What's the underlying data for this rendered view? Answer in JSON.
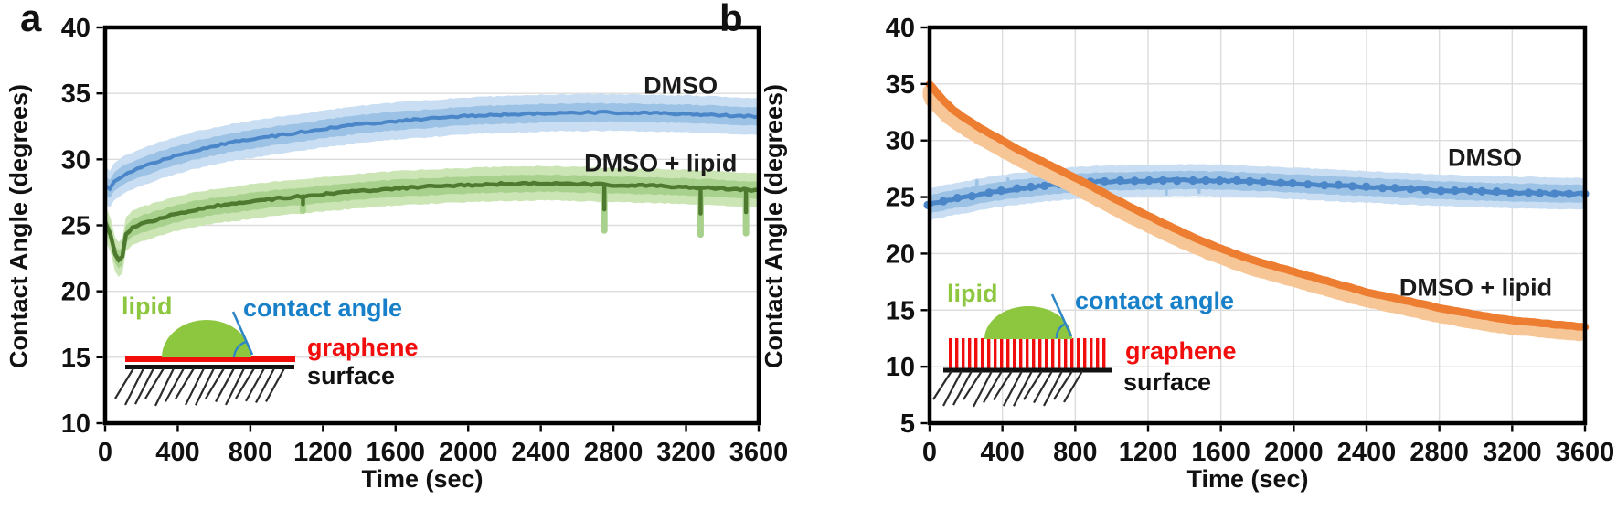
{
  "chart_data": [
    {
      "type": "line",
      "panel_label": "a",
      "xlabel": "Time (sec)",
      "ylabel": "Contact Angle (degrees)",
      "xlim": [
        0,
        3600
      ],
      "ylim": [
        10,
        40
      ],
      "x_ticks": [
        0,
        400,
        800,
        1200,
        1600,
        2000,
        2400,
        2800,
        3200,
        3600
      ],
      "y_ticks": [
        40,
        35,
        30,
        25,
        20,
        15,
        10
      ],
      "grid": {
        "horizontal": true,
        "vertical": false
      },
      "series": [
        {
          "name": "DMSO",
          "color": "#4A86C8",
          "band_inner_color": "#9CC2E5",
          "band_outer_color": "#C9DEF2",
          "band_inner": 0.7,
          "band_outer": 1.4,
          "line_width": 4,
          "label_pos": [
            3170,
            35.6
          ],
          "points": [
            [
              0,
              28.1
            ],
            [
              25,
              27.7
            ],
            [
              50,
              28.3
            ],
            [
              100,
              28.8
            ],
            [
              150,
              29.1
            ],
            [
              200,
              29.4
            ],
            [
              300,
              29.9
            ],
            [
              400,
              30.3
            ],
            [
              500,
              30.7
            ],
            [
              600,
              31.0
            ],
            [
              700,
              31.3
            ],
            [
              800,
              31.5
            ],
            [
              900,
              31.7
            ],
            [
              1000,
              31.9
            ],
            [
              1200,
              32.3
            ],
            [
              1400,
              32.65
            ],
            [
              1600,
              32.9
            ],
            [
              1800,
              33.1
            ],
            [
              2000,
              33.3
            ],
            [
              2200,
              33.4
            ],
            [
              2400,
              33.5
            ],
            [
              2600,
              33.55
            ],
            [
              2800,
              33.55
            ],
            [
              3000,
              33.5
            ],
            [
              3200,
              33.45
            ],
            [
              3400,
              33.35
            ],
            [
              3600,
              33.25
            ]
          ]
        },
        {
          "name": "DMSO + lipid",
          "color": "#4D7A2E",
          "band_inner_color": "#A9D18E",
          "band_outer_color": "#CBE5B5",
          "band_inner": 0.65,
          "band_outer": 1.3,
          "line_width": 4.5,
          "label_pos": [
            3060,
            29.7
          ],
          "points": [
            [
              0,
              25.3
            ],
            [
              30,
              24.2
            ],
            [
              55,
              22.8
            ],
            [
              75,
              22.4
            ],
            [
              95,
              22.7
            ],
            [
              115,
              24.3
            ],
            [
              150,
              24.8
            ],
            [
              200,
              25.1
            ],
            [
              300,
              25.5
            ],
            [
              400,
              25.9
            ],
            [
              500,
              26.2
            ],
            [
              600,
              26.45
            ],
            [
              700,
              26.6
            ],
            [
              800,
              26.8
            ],
            [
              900,
              26.95
            ],
            [
              1000,
              27.1
            ],
            [
              1200,
              27.35
            ],
            [
              1400,
              27.6
            ],
            [
              1600,
              27.8
            ],
            [
              1800,
              27.95
            ],
            [
              2000,
              28.05
            ],
            [
              2200,
              28.15
            ],
            [
              2400,
              28.2
            ],
            [
              2600,
              28.15
            ],
            [
              2800,
              28.05
            ],
            [
              3000,
              28.0
            ],
            [
              3200,
              27.9
            ],
            [
              3400,
              27.8
            ],
            [
              3600,
              27.65
            ]
          ],
          "spikes": [
            [
              1090,
              26.6,
              26.1
            ],
            [
              2750,
              26.2,
              24.6
            ],
            [
              3280,
              25.9,
              24.3
            ],
            [
              3530,
              26.0,
              24.4
            ]
          ]
        }
      ],
      "inset": {
        "lipid": "lipid",
        "contact_angle": "contact angle",
        "graphene": "graphene",
        "surface": "surface",
        "graphene_style": "sheet"
      }
    },
    {
      "type": "line",
      "panel_label": "b",
      "xlabel": "Time (sec)",
      "ylabel": "Contact Angle (degrees)",
      "xlim": [
        0,
        3600
      ],
      "ylim": [
        5,
        40
      ],
      "x_ticks": [
        0,
        400,
        800,
        1200,
        1600,
        2000,
        2400,
        2800,
        3200,
        3600
      ],
      "y_ticks": [
        40,
        35,
        30,
        25,
        20,
        15,
        10,
        5
      ],
      "grid": {
        "horizontal": true,
        "vertical": true
      },
      "series": [
        {
          "name": "DMSO",
          "color": "#4A86C8",
          "band_inner_color": "#9CC2E5",
          "band_outer_color": "#C9DEF2",
          "band_inner": 0.8,
          "band_outer": 1.4,
          "line_width": 5,
          "markers": true,
          "label_pos": [
            3050,
            28.5
          ],
          "err_ticks": [
            [
              260,
              1.25
            ],
            [
              430,
              1.0
            ],
            [
              640,
              1.2
            ],
            [
              760,
              1.05
            ],
            [
              1300,
              -1.25
            ],
            [
              1480,
              -1.05
            ]
          ],
          "points": [
            [
              0,
              24.35
            ],
            [
              100,
              24.7
            ],
            [
              200,
              25.0
            ],
            [
              300,
              25.3
            ],
            [
              400,
              25.55
            ],
            [
              500,
              25.75
            ],
            [
              600,
              25.95
            ],
            [
              700,
              26.1
            ],
            [
              800,
              26.25
            ],
            [
              1000,
              26.4
            ],
            [
              1200,
              26.45
            ],
            [
              1400,
              26.5
            ],
            [
              1600,
              26.45
            ],
            [
              1800,
              26.35
            ],
            [
              2000,
              26.2
            ],
            [
              2200,
              26.05
            ],
            [
              2400,
              25.9
            ],
            [
              2600,
              25.75
            ],
            [
              2800,
              25.6
            ],
            [
              3000,
              25.5
            ],
            [
              3200,
              25.4
            ],
            [
              3400,
              25.35
            ],
            [
              3600,
              25.3
            ]
          ]
        },
        {
          "name": "DMSO + lipid",
          "color": "#ED7D31",
          "shadow_color": "#F7C696",
          "style": "shadow",
          "shadow_dt": -30,
          "shadow_dv": -0.62,
          "shadow_width": 15,
          "line_width": 8.5,
          "label_pos": [
            3000,
            17.0
          ],
          "points": [
            [
              0,
              35.0
            ],
            [
              40,
              34.2
            ],
            [
              80,
              33.5
            ],
            [
              130,
              32.7
            ],
            [
              200,
              31.9
            ],
            [
              300,
              30.9
            ],
            [
              400,
              30.0
            ],
            [
              500,
              29.1
            ],
            [
              600,
              28.3
            ],
            [
              700,
              27.5
            ],
            [
              800,
              26.7
            ],
            [
              900,
              25.85
            ],
            [
              1000,
              25.0
            ],
            [
              1100,
              24.15
            ],
            [
              1200,
              23.35
            ],
            [
              1300,
              22.55
            ],
            [
              1400,
              21.8
            ],
            [
              1500,
              21.1
            ],
            [
              1600,
              20.45
            ],
            [
              1700,
              19.85
            ],
            [
              1800,
              19.3
            ],
            [
              1900,
              18.85
            ],
            [
              2000,
              18.4
            ],
            [
              2200,
              17.5
            ],
            [
              2400,
              16.6
            ],
            [
              2600,
              15.9
            ],
            [
              2800,
              15.2
            ],
            [
              3000,
              14.6
            ],
            [
              3200,
              14.1
            ],
            [
              3400,
              13.8
            ],
            [
              3600,
              13.5
            ]
          ]
        }
      ],
      "inset": {
        "lipid": "lipid",
        "contact_angle": "contact angle",
        "graphene": "graphene",
        "surface": "surface",
        "graphene_style": "pillars"
      }
    }
  ]
}
